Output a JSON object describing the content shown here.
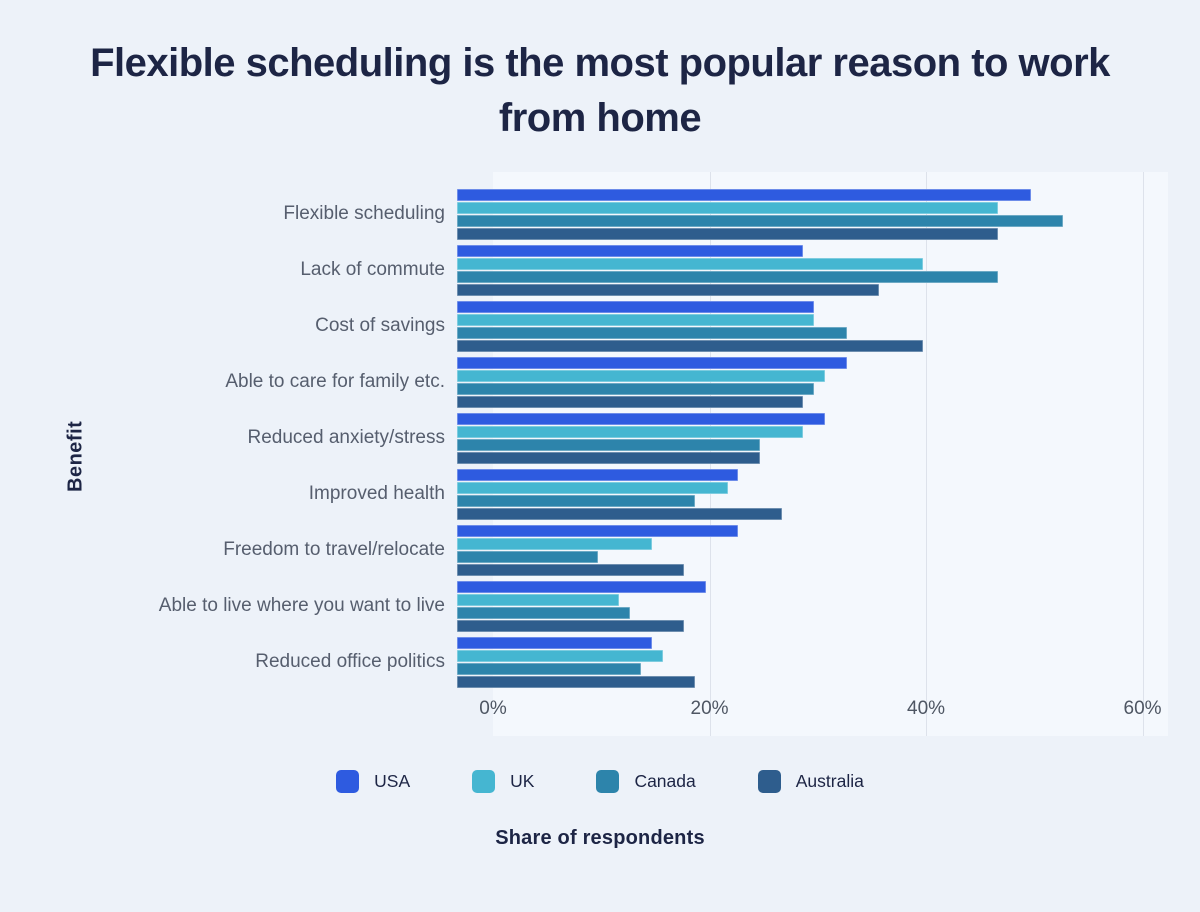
{
  "chart_data": {
    "type": "bar",
    "orientation": "horizontal",
    "title": "Flexible scheduling is the most popular reason to work from home",
    "xlabel": "Share of respondents",
    "ylabel": "Benefit",
    "categories": [
      "Flexible scheduling",
      "Lack of commute",
      "Cost of savings",
      "Able to care for family etc.",
      "Reduced anxiety/stress",
      "Improved health",
      "Freedom to travel/relocate",
      "Able to live where you want to live",
      "Reduced office politics"
    ],
    "series": [
      {
        "name": "USA",
        "color": "#2e5be0",
        "values": [
          53,
          32,
          33,
          36,
          34,
          26,
          26,
          23,
          18
        ]
      },
      {
        "name": "UK",
        "color": "#45b6d1",
        "values": [
          50,
          43,
          33,
          34,
          32,
          25,
          18,
          15,
          19
        ]
      },
      {
        "name": "Canada",
        "color": "#2d84ab",
        "values": [
          56,
          50,
          36,
          33,
          28,
          22,
          13,
          16,
          17
        ]
      },
      {
        "name": "Australia",
        "color": "#2e5d8d",
        "values": [
          50,
          39,
          43,
          32,
          28,
          30,
          21,
          21,
          22
        ]
      }
    ],
    "x_ticks": [
      {
        "label": "0%",
        "value": 0
      },
      {
        "label": "20%",
        "value": 20
      },
      {
        "label": "40%",
        "value": 40
      },
      {
        "label": "60%",
        "value": 60
      }
    ],
    "x_gridlines": [
      20,
      40,
      60
    ],
    "xlim": [
      0,
      62.35
    ],
    "grid": "vertical",
    "legend_position": "bottom"
  },
  "colors": {
    "background": "#edf2f9",
    "plot_background": "#f4f8fd",
    "title_text": "#1d2545",
    "category_text": "#565e6e",
    "tick_text": "#4e5663",
    "gridline": "#dde2eb"
  }
}
